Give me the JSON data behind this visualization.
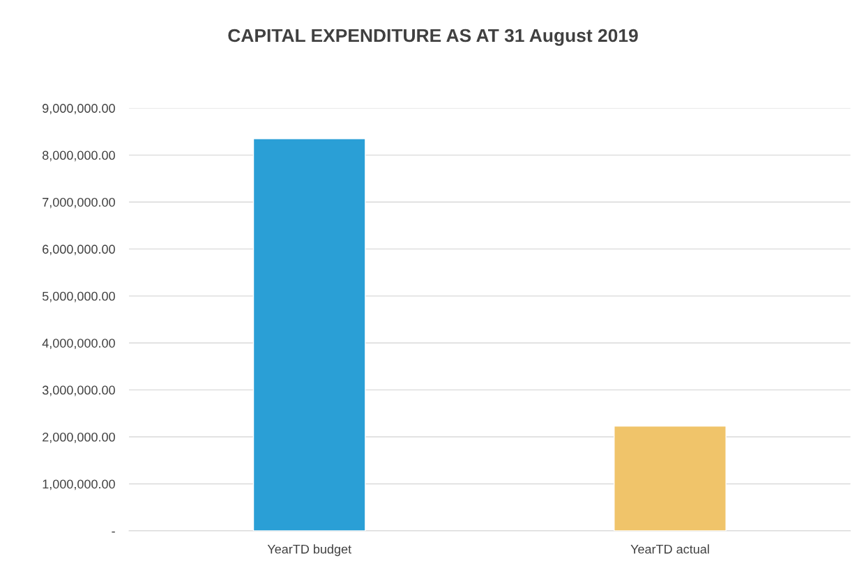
{
  "chart_data": {
    "type": "bar",
    "title": "CAPITAL EXPENDITURE AS AT 31 August 2019",
    "categories": [
      "YearTD budget",
      "YearTD actual"
    ],
    "values": [
      8350000,
      2230000
    ],
    "colors": [
      "#2a9fd6",
      "#f0c46a"
    ],
    "ylim": [
      0,
      9000000
    ],
    "yticks": [
      {
        "value": 0,
        "label": "-"
      },
      {
        "value": 1000000,
        "label": "1,000,000.00"
      },
      {
        "value": 2000000,
        "label": "2,000,000.00"
      },
      {
        "value": 3000000,
        "label": "3,000,000.00"
      },
      {
        "value": 4000000,
        "label": "4,000,000.00"
      },
      {
        "value": 5000000,
        "label": "5,000,000.00"
      },
      {
        "value": 6000000,
        "label": "6,000,000.00"
      },
      {
        "value": 7000000,
        "label": "7,000,000.00"
      },
      {
        "value": 8000000,
        "label": "8,000,000.00"
      },
      {
        "value": 9000000,
        "label": "9,000,000.00"
      }
    ],
    "grid": "y",
    "legend": false
  }
}
